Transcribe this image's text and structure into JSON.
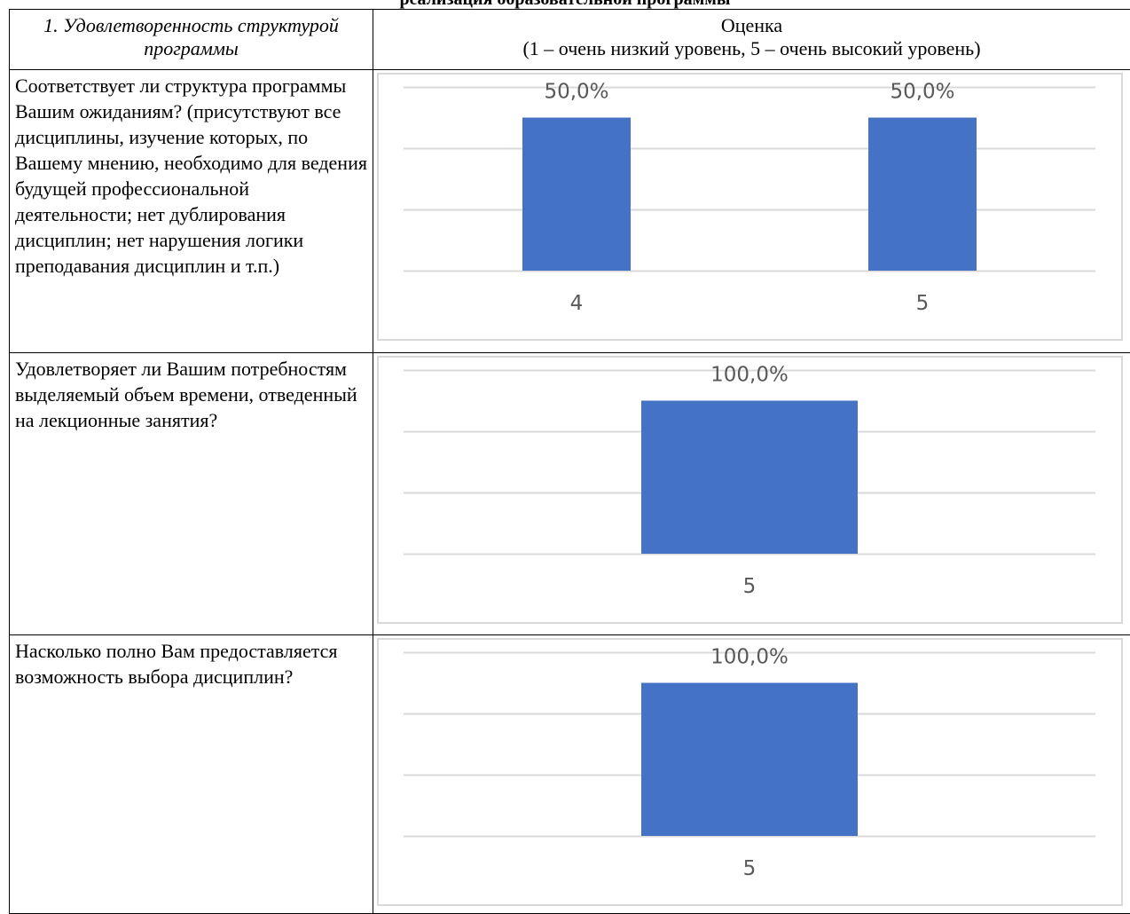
{
  "page": {
    "title": "реализация образовательной программы"
  },
  "table": {
    "header": {
      "question_col": "1. Удовлетворенность структурой программы",
      "rating_col_line1": "Оценка",
      "rating_col_line2": "(1 – очень низкий уровень, 5 – очень высокий уровень)"
    },
    "rows": [
      {
        "question": "Соответствует ли структура программы Вашим ожиданиям? (присутствуют все дисциплины, изучение которых, по Вашему мнению, необходимо для ведения будущей профессиональной деятельности; нет дублирования дисциплин; нет нарушения логики преподавания дисциплин и т.п.)"
      },
      {
        "question": "Удовлетворяет ли Вашим потребностям выделяемый объем времени, отведенный на лекционные занятия?"
      },
      {
        "question": "Насколько полно Вам предоставляется возможность выбора дисциплин?"
      }
    ]
  },
  "chart_data": [
    {
      "type": "bar",
      "categories": [
        "4",
        "5"
      ],
      "values": [
        50.0,
        50.0
      ],
      "data_labels": [
        "50,0%",
        "50,0%"
      ],
      "ylim": [
        0,
        60
      ],
      "grid": true,
      "colors": {
        "bar": "#4472c4",
        "grid": "#d9d9d9",
        "text": "#595959"
      }
    },
    {
      "type": "bar",
      "categories": [
        "5"
      ],
      "values": [
        100.0
      ],
      "data_labels": [
        "100,0%"
      ],
      "ylim": [
        0,
        120
      ],
      "grid": true,
      "colors": {
        "bar": "#4472c4",
        "grid": "#d9d9d9",
        "text": "#595959"
      }
    },
    {
      "type": "bar",
      "categories": [
        "5"
      ],
      "values": [
        100.0
      ],
      "data_labels": [
        "100,0%"
      ],
      "ylim": [
        0,
        120
      ],
      "grid": true,
      "colors": {
        "bar": "#4472c4",
        "grid": "#d9d9d9",
        "text": "#595959"
      }
    }
  ]
}
